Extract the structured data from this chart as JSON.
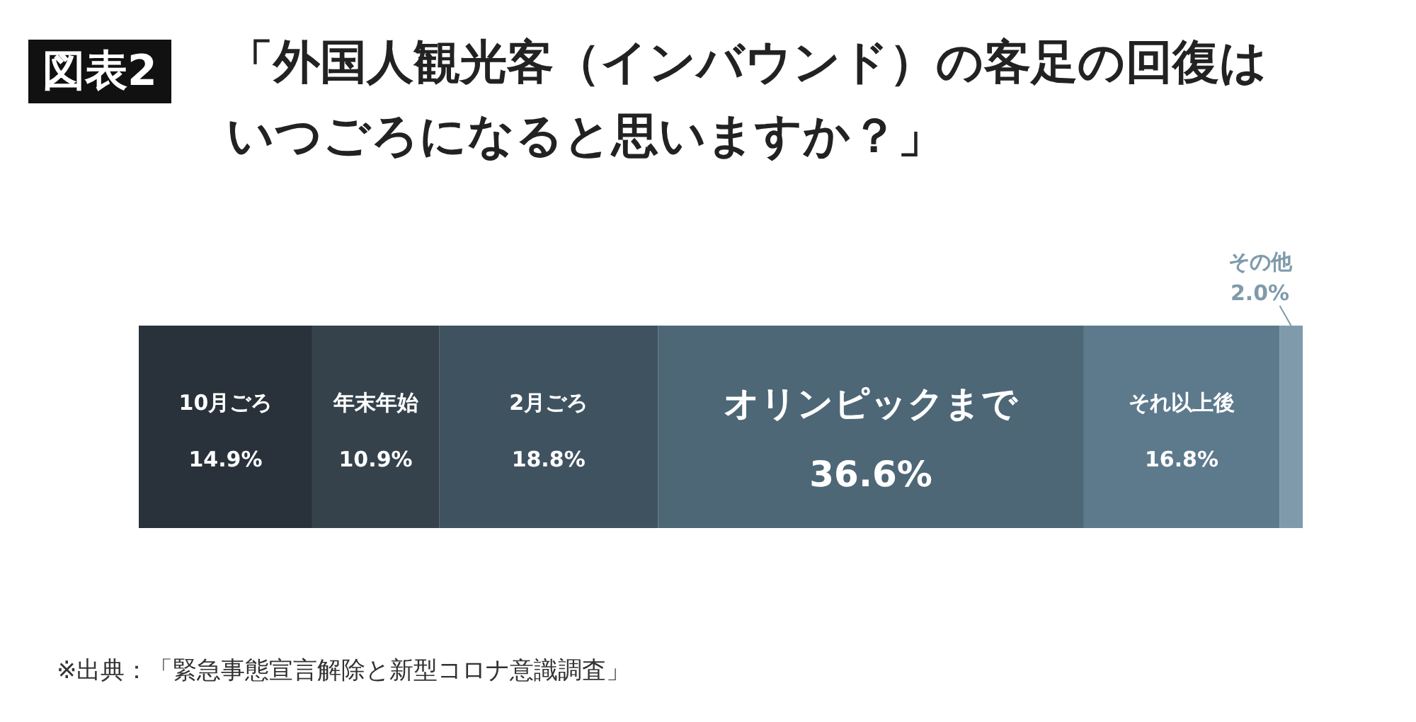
{
  "chart_data": {
    "type": "bar",
    "orientation": "horizontal",
    "stacked": true,
    "title": "「外国人観光客（インバウンド）の客足の回復はいつごろになると思いますか？」",
    "annotations": [
      "図表2",
      "※出典：「緊急事態宣言解除と新型コロナ意識調査」"
    ],
    "categories": [
      null
    ],
    "series": [
      {
        "name": "10月ごろ",
        "color": "#29323a",
        "values": [
          14.9
        ],
        "value_labels": [
          "14.9%"
        ]
      },
      {
        "name": "年末年始",
        "color": "#35424c",
        "values": [
          10.9
        ],
        "value_labels": [
          "10.9%"
        ]
      },
      {
        "name": "2月ごろ",
        "color": "#3f5260",
        "values": [
          18.8
        ],
        "value_labels": [
          "18.8%"
        ]
      },
      {
        "name": "オリンピックまで",
        "color": "#4d6777",
        "values": [
          36.6
        ],
        "value_labels": [
          "36.6%"
        ]
      },
      {
        "name": "それ以上後",
        "color": "#5c7a8c",
        "values": [
          16.8
        ],
        "value_labels": [
          "16.8%"
        ]
      },
      {
        "name": "その他",
        "color": "#7f9bab",
        "values": [
          2.0
        ],
        "value_labels": [
          "2.0%"
        ]
      }
    ]
  }
}
